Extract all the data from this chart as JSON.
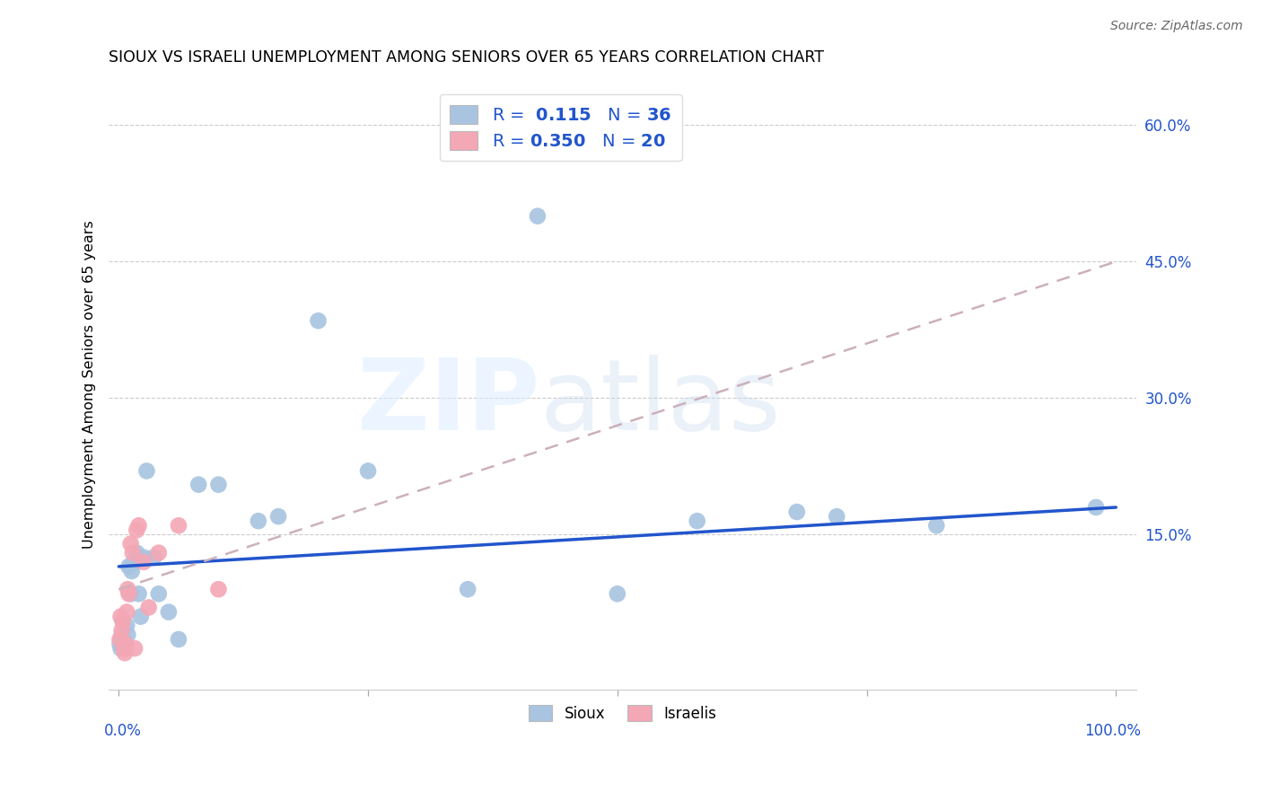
{
  "title": "SIOUX VS ISRAELI UNEMPLOYMENT AMONG SENIORS OVER 65 YEARS CORRELATION CHART",
  "source": "Source: ZipAtlas.com",
  "ylabel": "Unemployment Among Seniors over 65 years",
  "y_ticks": [
    0.0,
    0.15,
    0.3,
    0.45,
    0.6
  ],
  "y_tick_labels": [
    "",
    "15.0%",
    "30.0%",
    "45.0%",
    "60.0%"
  ],
  "sioux_R": "0.115",
  "sioux_N": "36",
  "israelis_R": "0.350",
  "israelis_N": "20",
  "sioux_color": "#a8c4e0",
  "israelis_color": "#f4a7b5",
  "sioux_line_color": "#2255cc",
  "israelis_line_color": "#d4a0b0",
  "sioux_x": [
    0.001,
    0.002,
    0.003,
    0.004,
    0.005,
    0.006,
    0.007,
    0.008,
    0.009,
    0.01,
    0.012,
    0.013,
    0.015,
    0.018,
    0.02,
    0.022,
    0.025,
    0.028,
    0.035,
    0.04,
    0.05,
    0.06,
    0.08,
    0.1,
    0.14,
    0.16,
    0.2,
    0.25,
    0.35,
    0.42,
    0.5,
    0.58,
    0.68,
    0.72,
    0.82,
    0.98
  ],
  "sioux_y": [
    0.03,
    0.025,
    0.04,
    0.055,
    0.035,
    0.03,
    0.025,
    0.05,
    0.04,
    0.115,
    0.085,
    0.11,
    0.12,
    0.13,
    0.085,
    0.06,
    0.125,
    0.22,
    0.125,
    0.085,
    0.065,
    0.035,
    0.205,
    0.205,
    0.165,
    0.17,
    0.385,
    0.22,
    0.09,
    0.5,
    0.085,
    0.165,
    0.175,
    0.17,
    0.16,
    0.18
  ],
  "israelis_x": [
    0.001,
    0.002,
    0.003,
    0.004,
    0.005,
    0.006,
    0.007,
    0.008,
    0.009,
    0.01,
    0.012,
    0.014,
    0.016,
    0.018,
    0.02,
    0.025,
    0.03,
    0.04,
    0.06,
    0.1
  ],
  "israelis_y": [
    0.035,
    0.06,
    0.045,
    0.055,
    0.025,
    0.02,
    0.03,
    0.065,
    0.09,
    0.085,
    0.14,
    0.13,
    0.025,
    0.155,
    0.16,
    0.12,
    0.07,
    0.13,
    0.16,
    0.09
  ]
}
